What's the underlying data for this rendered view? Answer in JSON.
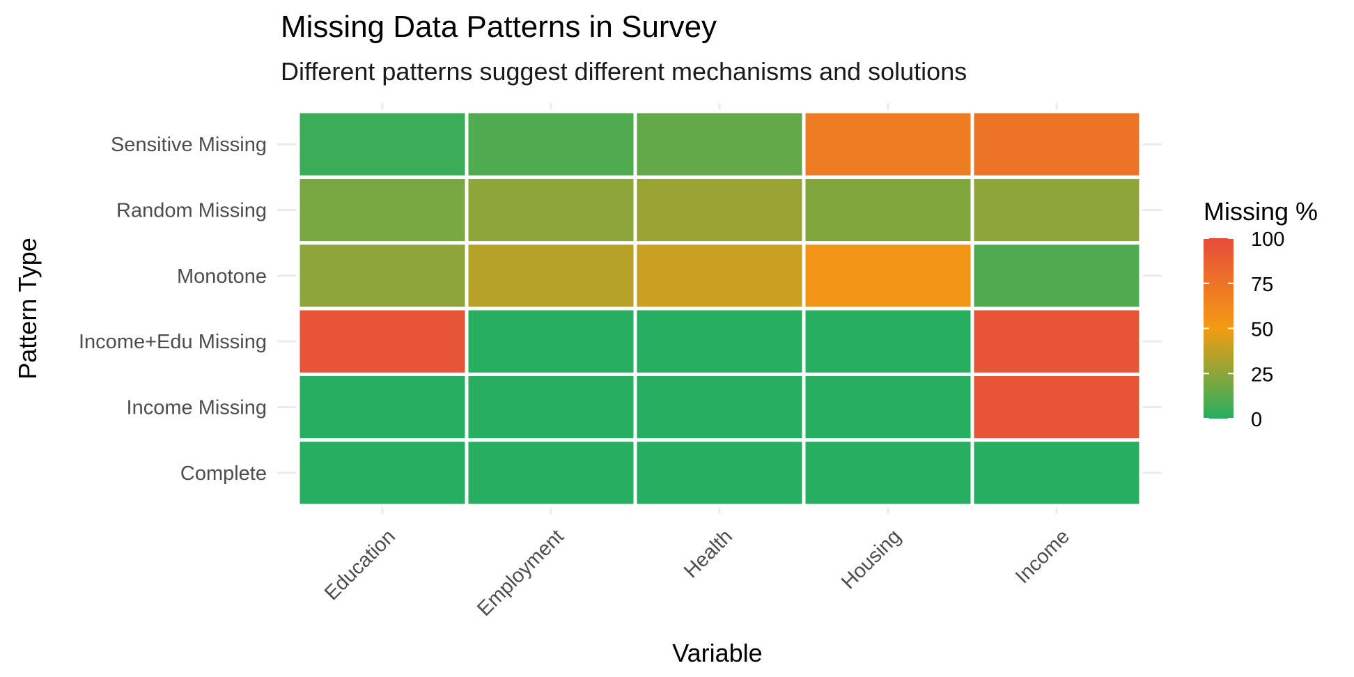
{
  "chart_data": {
    "type": "heatmap",
    "title": "Missing Data Patterns in Survey",
    "subtitle": "Different patterns suggest different mechanisms and solutions",
    "xlabel": "Variable",
    "ylabel": "Pattern Type",
    "x_categories": [
      "Education",
      "Employment",
      "Health",
      "Housing",
      "Income"
    ],
    "y_categories": [
      "Complete",
      "Income Missing",
      "Income+Edu Missing",
      "Monotone",
      "Random Missing",
      "Sensitive Missing"
    ],
    "values": [
      [
        0,
        0,
        0,
        0,
        0
      ],
      [
        0,
        0,
        0,
        0,
        95
      ],
      [
        95,
        0,
        0,
        0,
        95
      ],
      [
        25,
        35,
        40,
        55,
        10
      ],
      [
        20,
        25,
        28,
        22,
        25
      ],
      [
        5,
        10,
        15,
        70,
        75
      ]
    ],
    "legend": {
      "title": "Missing %",
      "position": "right",
      "ticks": [
        0,
        25,
        50,
        75,
        100
      ],
      "range": [
        0,
        100
      ],
      "colors": {
        "low": "#27AE60",
        "mid": "#F39C12",
        "high": "#E74C3C"
      }
    },
    "grid": true
  }
}
